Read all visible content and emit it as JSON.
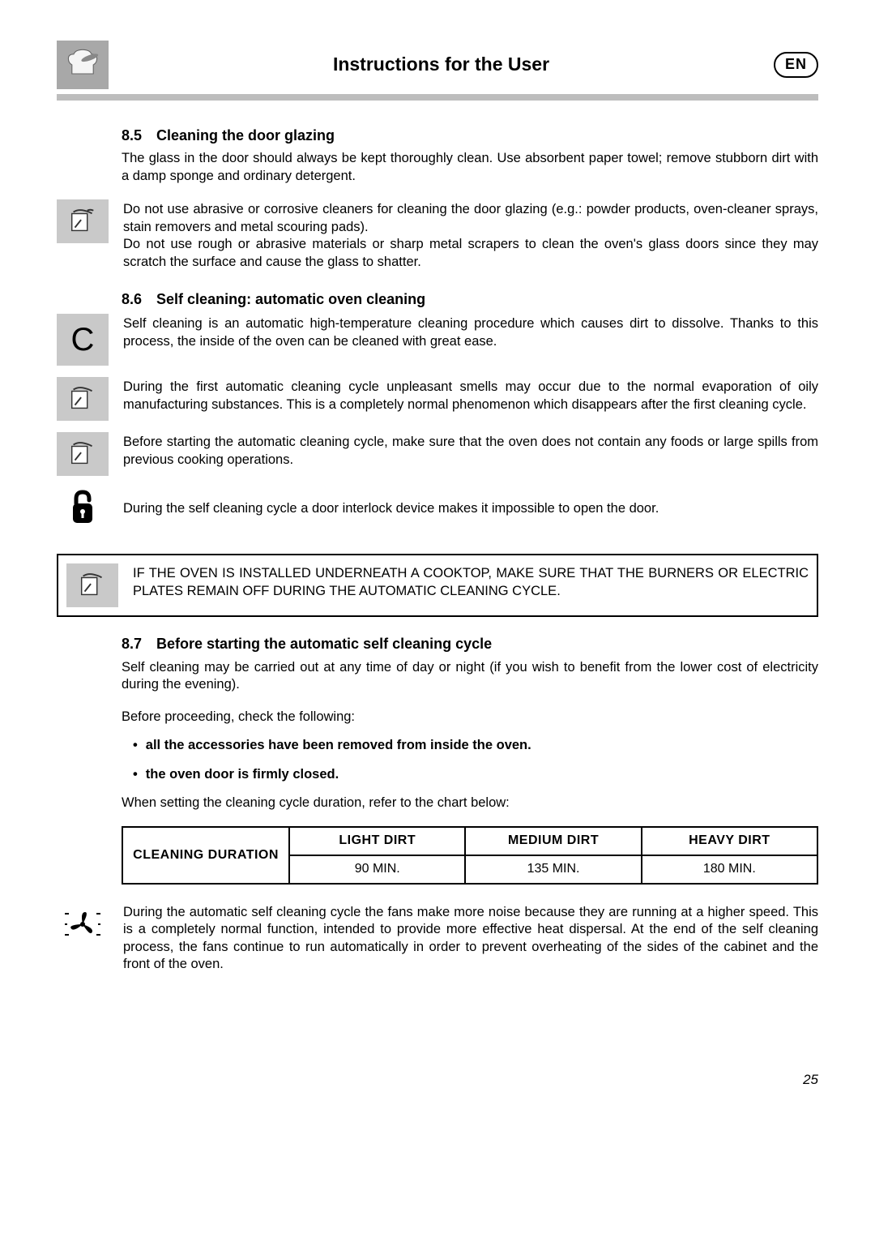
{
  "header": {
    "title": "Instructions for the User",
    "language_badge": "EN"
  },
  "sections": {
    "s85": {
      "num": "8.5",
      "title": "Cleaning the door glazing",
      "body": "The glass in the door should always be kept thoroughly clean. Use absorbent paper towel; remove stubborn dirt with a damp sponge and ordinary detergent.",
      "note": "Do not use abrasive or corrosive cleaners for cleaning the door glazing (e.g.: powder products, oven-cleaner sprays, stain removers and metal scouring pads).\nDo not use rough or abrasive materials or sharp metal scrapers to clean the oven's glass doors since they may scratch the surface and cause the glass to shatter."
    },
    "s86": {
      "num": "8.6",
      "title": "Self cleaning: automatic oven cleaning",
      "c_note": "Self cleaning is an automatic high-temperature cleaning procedure which causes dirt to dissolve. Thanks to this process, the inside of the oven can be cleaned with great ease.",
      "note1": "During the first automatic cleaning cycle unpleasant smells may occur due to the normal evaporation of oily manufacturing substances. This is a completely normal phenomenon which disappears after the first cleaning cycle.",
      "note2": "Before starting the automatic cleaning cycle, make sure that the oven does not contain any foods or large spills from previous cooking operations.",
      "lock_note": "During the self cleaning cycle a door interlock device makes it impossible to open the door.",
      "boxed": "IF THE OVEN IS INSTALLED UNDERNEATH A COOKTOP, MAKE SURE THAT THE BURNERS OR ELECTRIC PLATES REMAIN OFF DURING THE AUTOMATIC CLEANING CYCLE."
    },
    "s87": {
      "num": "8.7",
      "title": "Before starting the automatic self cleaning cycle",
      "body1": "Self cleaning may be carried out at any time of day or night (if you wish to benefit from the lower cost of electricity during the evening).",
      "body2": "Before proceeding, check the following:",
      "bullet1": "all the accessories have been removed from inside the oven.",
      "bullet2": "the oven door is firmly closed.",
      "body3": "When setting the cleaning cycle duration, refer to the chart below:",
      "fan_note": "During the automatic self cleaning cycle the fans make more noise because they are running at a higher speed. This is a completely normal function, intended to provide more effective heat dispersal. At the end of the self cleaning process, the fans continue to run automatically in order to prevent overheating of the sides of the cabinet and the front of the oven."
    }
  },
  "table": {
    "row_header": "CLEANING DURATION",
    "columns": [
      "LIGHT DIRT",
      "MEDIUM DIRT",
      "HEAVY DIRT"
    ],
    "values": [
      "90 MIN.",
      "135 MIN.",
      "180 MIN."
    ],
    "col_widths_pct": [
      24,
      25.3,
      25.3,
      25.3
    ]
  },
  "page_number": "25",
  "colors": {
    "header_rule": "#bdbdbd",
    "icon_bg": "#c9c9c9",
    "text": "#000000",
    "bg": "#ffffff"
  }
}
